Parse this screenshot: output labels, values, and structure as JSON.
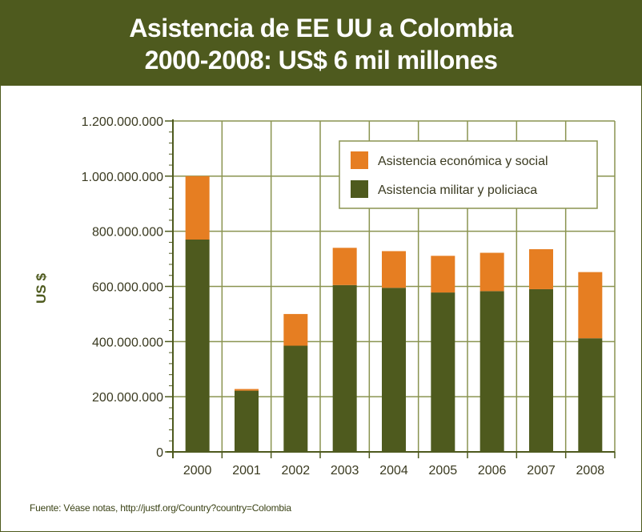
{
  "header": {
    "title_line1": "Asistencia de EE UU a Colombia",
    "title_line2": "2000-2008: US$ 6 mil millones"
  },
  "footer": {
    "source": "Fuente: Véase notas, http://justf.org/Country?country=Colombia"
  },
  "colors": {
    "military": "#4e5a1e",
    "economic": "#e67e22",
    "grid": "#8a9450"
  },
  "chart_data": {
    "type": "bar",
    "stacked": true,
    "ylabel": "US $",
    "ylim": [
      0,
      1200000000
    ],
    "yticks": [
      0,
      200000000,
      400000000,
      600000000,
      800000000,
      1000000000,
      1200000000
    ],
    "ytick_labels": [
      "0",
      "200.000.000",
      "400.000.000",
      "600.000.000",
      "800.000.000",
      "1.000.000.000",
      "1.200.000.000"
    ],
    "categories": [
      "2000",
      "2001",
      "2002",
      "2003",
      "2004",
      "2005",
      "2006",
      "2007",
      "2008"
    ],
    "series": [
      {
        "name": "Asistencia militar y policiaca",
        "color": "#4e5a1e",
        "values": [
          770000000,
          222000000,
          385000000,
          605000000,
          595000000,
          578000000,
          583000000,
          590000000,
          412000000
        ]
      },
      {
        "name": "Asistencia económica y social",
        "color": "#e67e22",
        "values": [
          230000000,
          6000000,
          115000000,
          135000000,
          133000000,
          133000000,
          139000000,
          145000000,
          240000000
        ]
      }
    ],
    "legend": [
      {
        "label": "Asistencia económica y social",
        "color": "#e67e22"
      },
      {
        "label": "Asistencia militar y policiaca",
        "color": "#4e5a1e"
      }
    ],
    "legend_position": "top-right",
    "grid": true
  }
}
